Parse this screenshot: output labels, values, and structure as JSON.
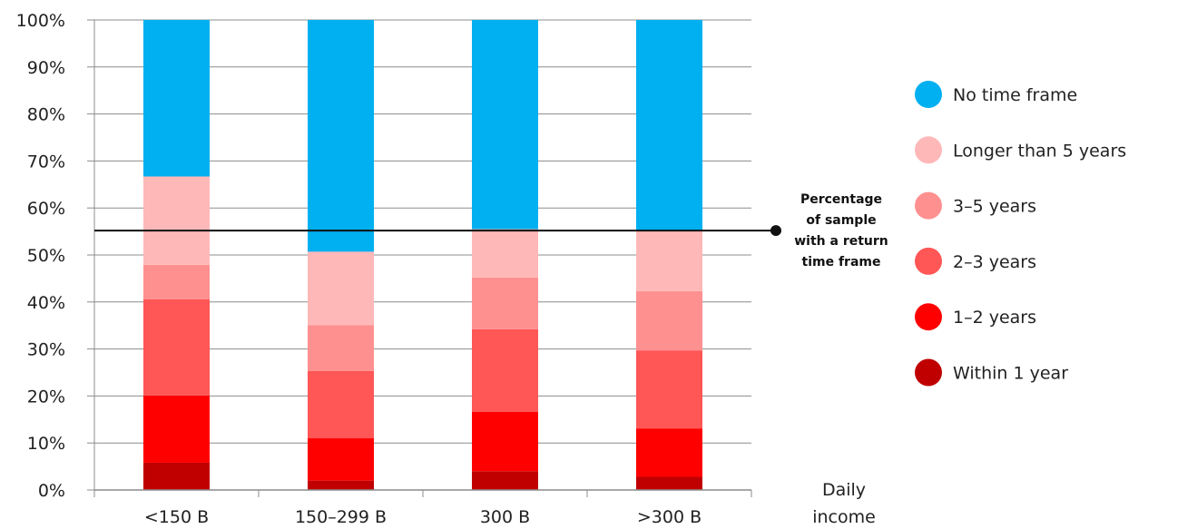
{
  "chart_data": {
    "type": "bar",
    "stacked": true,
    "percent_stacked": true,
    "categories": [
      "<150 B",
      "150–299 B",
      "300 B",
      ">300 B"
    ],
    "series": [
      {
        "name": "Within 1 year",
        "color": "#c00000",
        "values": [
          5.8,
          2,
          4,
          2.8
        ]
      },
      {
        "name": "1–2 years",
        "color": "#ff0000",
        "values": [
          14.3,
          9,
          12.6,
          10.3
        ]
      },
      {
        "name": "2–3 years",
        "color": "#ff5656",
        "values": [
          20.5,
          14.3,
          17.6,
          16.6
        ]
      },
      {
        "name": "3–5 years",
        "color": "#ff9090",
        "values": [
          7.3,
          9.8,
          11,
          12.6
        ]
      },
      {
        "name": "Longer than 5 years",
        "color": "#ffb8b8",
        "values": [
          18.8,
          15.6,
          10.3,
          13
        ]
      },
      {
        "name": "No time frame",
        "color": "#00b0f0",
        "values": [
          33.3,
          49.3,
          44.5,
          44.7
        ]
      }
    ],
    "yticks": [
      "0%",
      "10%",
      "20%",
      "30%",
      "40%",
      "50%",
      "60%",
      "70%",
      "80%",
      "90%",
      "100%"
    ],
    "ylim": [
      0,
      100
    ],
    "xlabel_lines": [
      "Daily",
      "income"
    ],
    "reference_line": {
      "value": 55.2,
      "label_lines": [
        "Percentage",
        "of sample",
        "with a return",
        "time frame"
      ]
    },
    "grid": true,
    "legend_position": "right"
  }
}
